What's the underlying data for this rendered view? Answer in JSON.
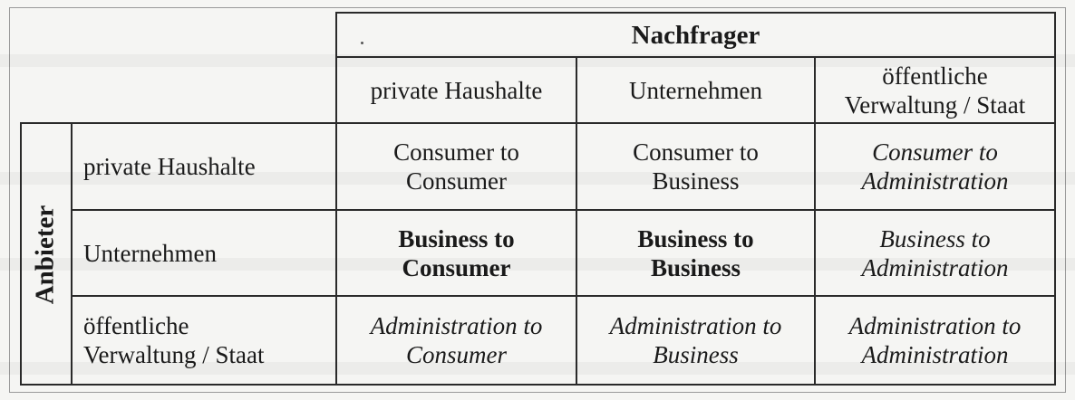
{
  "header": {
    "group_title": "Nachfrager",
    "columns": [
      "private Haushalte",
      "Unternehmen",
      "öffentliche Verwaltung / Staat"
    ]
  },
  "side": {
    "group_title": "Anbieter",
    "rows": [
      "private Haushalte",
      "Unternehmen",
      "öffentliche Verwaltung / Staat"
    ]
  },
  "cells": [
    [
      "Consumer to Consumer",
      "Consumer to Business",
      "Consumer to Administration"
    ],
    [
      "Business to Consumer",
      "Business to Business",
      "Business to Administration"
    ],
    [
      "Administration to Consumer",
      "Administration to Business",
      "Administration to Administration"
    ]
  ],
  "cell_lines": {
    "c00": [
      "Consumer to",
      "Consumer"
    ],
    "c01": [
      "Consumer to",
      "Business"
    ],
    "c02": [
      "Consumer to",
      "Administration"
    ],
    "c10": [
      "Business to",
      "Consumer"
    ],
    "c11": [
      "Business to",
      "Business"
    ],
    "c12": [
      "Business to",
      "Administration"
    ],
    "c20": [
      "Administration to",
      "Consumer"
    ],
    "c21": [
      "Administration to",
      "Business"
    ],
    "c22": [
      "Administration to",
      "Administration"
    ],
    "col2": [
      "öffentliche",
      "Verwaltung / Staat"
    ],
    "row2": [
      "öffentliche",
      "Verwaltung / Staat"
    ]
  }
}
